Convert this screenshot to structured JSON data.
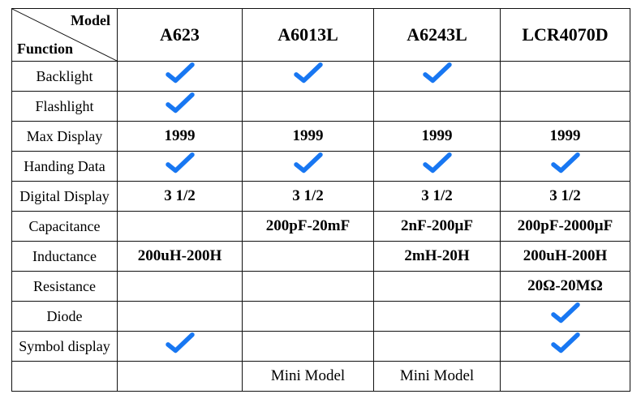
{
  "colors": {
    "border": "#111111",
    "text": "#111111",
    "check": "#1877f2",
    "background": "#ffffff"
  },
  "header": {
    "top_label": "Model",
    "bottom_label": "Function",
    "models": [
      "A623",
      "A6013L",
      "A6243L",
      "LCR4070D"
    ]
  },
  "rows": [
    {
      "label": "Backlight",
      "cells": [
        "check",
        "check",
        "check",
        ""
      ]
    },
    {
      "label": "Flashlight",
      "cells": [
        "check",
        "",
        "",
        ""
      ]
    },
    {
      "label": "Max Display",
      "bold": true,
      "cells": [
        "1999",
        "1999",
        "1999",
        "1999"
      ]
    },
    {
      "label": "Handing Data",
      "cells": [
        "check",
        "check",
        "check",
        "check"
      ]
    },
    {
      "label": "Digital Display",
      "bold": true,
      "cells": [
        "3 1/2",
        "3 1/2",
        "3 1/2",
        "3 1/2"
      ]
    },
    {
      "label": "Capacitance",
      "bold": true,
      "cells": [
        "",
        "200pF-20mF",
        "2nF-200μF",
        "200pF-2000μF"
      ]
    },
    {
      "label": "Inductance",
      "bold": true,
      "cells": [
        "200uH-200H",
        "",
        "2mH-20H",
        "200uH-200H"
      ]
    },
    {
      "label": "Resistance",
      "bold": true,
      "cells": [
        "",
        "",
        "",
        "20Ω-20MΩ"
      ]
    },
    {
      "label": "Diode",
      "cells": [
        "",
        "",
        "",
        "check"
      ]
    },
    {
      "label": "Symbol display",
      "cells": [
        "check",
        "",
        "",
        "check"
      ]
    },
    {
      "label": "",
      "cells": [
        "",
        "Mini Model",
        "Mini Model",
        ""
      ]
    }
  ]
}
